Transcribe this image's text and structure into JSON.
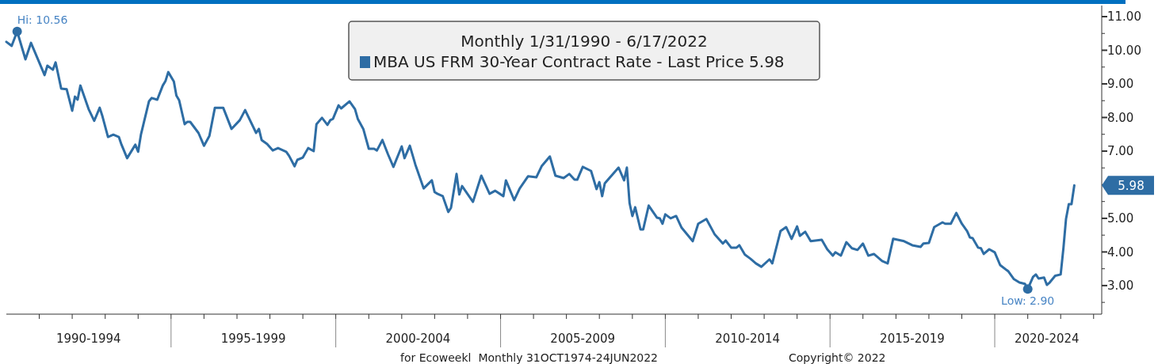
{
  "chart_data": {
    "type": "line",
    "title": "Monthly 1/31/1990 - 6/17/2022",
    "x": [
      "1990-01",
      "1990-03",
      "1990-05",
      "1990-08",
      "1990-10",
      "1991-03",
      "1991-04",
      "1991-06",
      "1991-07",
      "1991-09",
      "1991-11",
      "1992-01",
      "1992-02",
      "1992-03",
      "1992-04",
      "1992-07",
      "1992-09",
      "1992-11",
      "1992-12",
      "1993-02",
      "1993-04",
      "1993-06",
      "1993-07",
      "1993-09",
      "1993-12",
      "1994-01",
      "1994-02",
      "1994-05",
      "1994-06",
      "1994-08",
      "1994-10",
      "1994-11",
      "1994-12",
      "1995-02",
      "1995-03",
      "1995-04",
      "1995-06",
      "1995-07",
      "1995-08",
      "1995-11",
      "1996-01",
      "1996-03",
      "1996-05",
      "1996-08",
      "1996-11",
      "1997-02",
      "1997-04",
      "1997-08",
      "1997-09",
      "1997-10",
      "1997-12",
      "1998-02",
      "1998-04",
      "1998-07",
      "1998-08",
      "1998-10",
      "1998-11",
      "1999-01",
      "1999-03",
      "1999-05",
      "1999-06",
      "1999-08",
      "1999-10",
      "1999-11",
      "1999-12",
      "2000-02",
      "2000-03",
      "2000-06",
      "2000-08",
      "2000-09",
      "2000-11",
      "2001-01",
      "2001-03",
      "2001-04",
      "2001-06",
      "2001-08",
      "2001-10",
      "2002-01",
      "2002-02",
      "2002-04",
      "2002-06",
      "2002-09",
      "2002-12",
      "2003-01",
      "2003-02",
      "2003-04",
      "2003-06",
      "2003-07",
      "2003-09",
      "2003-10",
      "2003-11",
      "2004-03",
      "2004-06",
      "2004-09",
      "2004-11",
      "2005-02",
      "2005-03",
      "2005-06",
      "2005-08",
      "2005-11",
      "2006-02",
      "2006-04",
      "2006-07",
      "2006-09",
      "2006-12",
      "2007-02",
      "2007-04",
      "2007-05",
      "2007-07",
      "2007-10",
      "2007-12",
      "2008-01",
      "2008-02",
      "2008-03",
      "2008-08",
      "2008-10",
      "2008-11",
      "2008-12",
      "2009-01",
      "2009-02",
      "2009-04",
      "2009-05",
      "2009-07",
      "2009-10",
      "2009-11",
      "2009-12",
      "2010-01",
      "2010-03",
      "2010-05",
      "2010-07",
      "2010-11",
      "2011-01",
      "2011-04",
      "2011-07",
      "2011-10",
      "2011-11",
      "2012-01",
      "2012-03",
      "2012-04",
      "2012-06",
      "2012-08",
      "2012-10",
      "2012-12",
      "2013-03",
      "2013-04",
      "2013-07",
      "2013-09",
      "2013-11",
      "2014-01",
      "2014-02",
      "2014-04",
      "2014-06",
      "2014-10",
      "2014-12",
      "2015-02",
      "2015-03",
      "2015-05",
      "2015-07",
      "2015-09",
      "2015-11",
      "2016-01",
      "2016-03",
      "2016-05",
      "2016-08",
      "2016-10",
      "2016-12",
      "2017-04",
      "2017-07",
      "2017-10",
      "2017-11",
      "2018-01",
      "2018-03",
      "2018-06",
      "2018-07",
      "2018-09",
      "2018-11",
      "2019-01",
      "2019-03",
      "2019-04",
      "2019-05",
      "2019-07",
      "2019-08",
      "2019-09",
      "2019-11",
      "2020-01",
      "2020-03",
      "2020-06",
      "2020-08",
      "2020-10",
      "2020-12",
      "2021-01",
      "2021-03",
      "2021-04",
      "2021-05",
      "2021-07",
      "2021-08",
      "2021-09",
      "2021-11",
      "2022-01",
      "2022-02",
      "2022-03",
      "2022-04",
      "2022-05",
      "2022-06"
    ],
    "series": [
      {
        "name": "MBA US FRM 30-Year Contract Rate - Last Price 5.98",
        "color": "#2e6da4",
        "values": [
          10.25,
          10.13,
          10.56,
          9.73,
          10.22,
          9.26,
          9.54,
          9.42,
          9.64,
          8.86,
          8.84,
          8.2,
          8.62,
          8.53,
          8.95,
          8.25,
          7.9,
          8.29,
          8.04,
          7.42,
          7.49,
          7.42,
          7.19,
          6.79,
          7.19,
          6.98,
          7.49,
          8.48,
          8.58,
          8.53,
          8.95,
          9.09,
          9.35,
          9.07,
          8.65,
          8.51,
          7.8,
          7.87,
          7.87,
          7.54,
          7.16,
          7.45,
          8.29,
          8.29,
          7.66,
          7.92,
          8.22,
          7.54,
          7.66,
          7.33,
          7.21,
          7.02,
          7.09,
          6.98,
          6.86,
          6.55,
          6.74,
          6.81,
          7.09,
          7.0,
          7.8,
          7.99,
          7.78,
          7.92,
          7.96,
          8.36,
          8.27,
          8.48,
          8.25,
          7.96,
          7.66,
          7.07,
          7.07,
          7.02,
          7.33,
          6.91,
          6.53,
          7.14,
          6.79,
          7.16,
          6.6,
          5.89,
          6.13,
          5.78,
          5.73,
          5.66,
          5.19,
          5.31,
          6.32,
          5.71,
          5.96,
          5.49,
          6.27,
          5.73,
          5.82,
          5.66,
          6.13,
          5.54,
          5.89,
          6.25,
          6.22,
          6.55,
          6.84,
          6.27,
          6.2,
          6.32,
          6.15,
          6.15,
          6.53,
          6.41,
          5.87,
          6.08,
          5.66,
          6.04,
          6.51,
          6.13,
          6.51,
          5.45,
          5.07,
          5.33,
          4.67,
          4.67,
          5.38,
          5.02,
          5.0,
          4.84,
          5.12,
          5.0,
          5.07,
          4.72,
          4.32,
          4.84,
          4.98,
          4.53,
          4.25,
          4.34,
          4.13,
          4.13,
          4.2,
          3.92,
          3.8,
          3.66,
          3.56,
          3.78,
          3.66,
          4.62,
          4.74,
          4.39,
          4.76,
          4.48,
          4.6,
          4.32,
          4.36,
          4.08,
          3.89,
          3.99,
          3.89,
          4.29,
          4.11,
          4.06,
          4.25,
          3.89,
          3.94,
          3.73,
          3.66,
          4.39,
          4.32,
          4.2,
          4.15,
          4.25,
          4.27,
          4.74,
          4.88,
          4.84,
          4.84,
          5.16,
          4.84,
          4.62,
          4.43,
          4.41,
          4.13,
          4.11,
          3.94,
          4.08,
          3.99,
          3.61,
          3.42,
          3.19,
          3.09,
          3.05,
          2.9,
          3.26,
          3.33,
          3.21,
          3.24,
          3.02,
          3.09,
          3.29,
          3.33,
          4.13,
          4.98,
          5.42,
          5.42,
          5.98
        ]
      }
    ],
    "xlim": [
      "1990-01",
      "2023-04"
    ],
    "xticks": [
      {
        "value": "1991-01",
        "label": null
      },
      {
        "value": "1992-01",
        "label": null
      },
      {
        "value": "1993-01",
        "label": null
      },
      {
        "value": "1994-01",
        "label": null
      },
      {
        "value": "1995-01",
        "label": null
      },
      {
        "value": "1996-01",
        "label": null
      },
      {
        "value": "1997-01",
        "label": null
      },
      {
        "value": "1998-01",
        "label": null
      },
      {
        "value": "1999-01",
        "label": null
      },
      {
        "value": "2000-01",
        "label": null
      },
      {
        "value": "2001-01",
        "label": null
      },
      {
        "value": "2002-01",
        "label": null
      },
      {
        "value": "2003-01",
        "label": null
      },
      {
        "value": "2004-01",
        "label": null
      },
      {
        "value": "2005-01",
        "label": null
      },
      {
        "value": "2006-01",
        "label": null
      },
      {
        "value": "2007-01",
        "label": null
      },
      {
        "value": "2008-01",
        "label": null
      },
      {
        "value": "2009-01",
        "label": null
      },
      {
        "value": "2010-01",
        "label": null
      },
      {
        "value": "2011-01",
        "label": null
      },
      {
        "value": "2012-01",
        "label": null
      },
      {
        "value": "2013-01",
        "label": null
      },
      {
        "value": "2014-01",
        "label": null
      },
      {
        "value": "2015-01",
        "label": null
      },
      {
        "value": "2016-01",
        "label": null
      },
      {
        "value": "2017-01",
        "label": null
      },
      {
        "value": "2018-01",
        "label": null
      },
      {
        "value": "2019-01",
        "label": null
      },
      {
        "value": "2020-01",
        "label": null
      },
      {
        "value": "2021-01",
        "label": null
      },
      {
        "value": "2022-01",
        "label": null
      },
      {
        "value": "2023-01",
        "label": null
      },
      {
        "value": "1992-07",
        "label": "1990-1994"
      },
      {
        "value": "1997-07",
        "label": "1995-1999"
      },
      {
        "value": "2002-07",
        "label": "2000-2004"
      },
      {
        "value": "2007-07",
        "label": "2005-2009"
      },
      {
        "value": "2012-07",
        "label": "2010-2014"
      },
      {
        "value": "2017-07",
        "label": "2015-2019"
      },
      {
        "value": "2021-08",
        "label": "2020-2024"
      }
    ],
    "ylim": [
      2.15,
      11.33
    ],
    "yticks": [
      {
        "value": 2.5,
        "label": null
      },
      {
        "value": 3,
        "label": "3.00"
      },
      {
        "value": 3.5,
        "label": null
      },
      {
        "value": 4,
        "label": "4.00"
      },
      {
        "value": 4.5,
        "label": null
      },
      {
        "value": 5,
        "label": "5.00"
      },
      {
        "value": 5.5,
        "label": null
      },
      {
        "value": 6,
        "label": null
      },
      {
        "value": 6.5,
        "label": null
      },
      {
        "value": 7,
        "label": "7.00"
      },
      {
        "value": 7.5,
        "label": null
      },
      {
        "value": 8,
        "label": "8.00"
      },
      {
        "value": 8.5,
        "label": null
      },
      {
        "value": 9,
        "label": "9.00"
      },
      {
        "value": 9.5,
        "label": null
      },
      {
        "value": 10,
        "label": "10.00"
      },
      {
        "value": 10.5,
        "label": null
      },
      {
        "value": 11,
        "label": "11.00"
      }
    ],
    "annotations": [
      {
        "text": "Hi: 10.56",
        "x": "1990-05",
        "y": 10.56
      },
      {
        "text": "Low: 2.90",
        "x": "2021-01",
        "y": 2.9
      },
      "5.98",
      "for Ecoweekl  Monthly 31OCT1974-24JUN2022",
      "Copyright© 2022"
    ],
    "legend": "top",
    "grid": false,
    "marker": "none",
    "line_style": "solid"
  }
}
